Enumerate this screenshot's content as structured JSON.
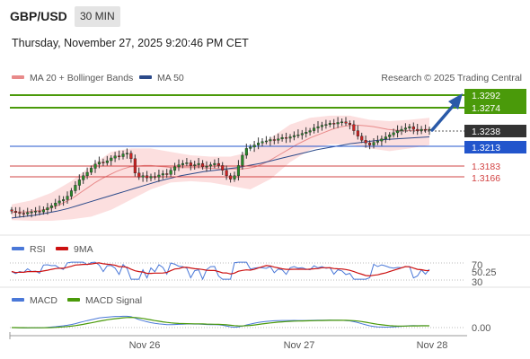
{
  "header": {
    "symbol": "GBP/USD",
    "timeframe": "30 MIN",
    "datetime": "Thursday, November 27, 2025 9:20:46 PM CET"
  },
  "colors": {
    "bull": "#2a8a2a",
    "bear": "#cc2222",
    "resistance": "#4a9a0a",
    "support_blue": "#2255cc",
    "support_red": "#d24444",
    "ma20": "#e88a8a",
    "ma50": "#2c4a8a",
    "band_fill": "#fbd9d9",
    "rsi": "#4a78d8",
    "rsi_ma": "#cc1111",
    "macd": "#4a78d8",
    "macd_signal": "#4a9a0a",
    "arrow": "#2a5aa8"
  },
  "chart_data": [
    {
      "type": "candlestick",
      "legend": [
        {
          "label": "MA 20 + Bollinger Bands",
          "color": "#e88a8a"
        },
        {
          "label": "MA 50",
          "color": "#2c4a8a"
        }
      ],
      "watermark": "Research © 2025 Trading Central",
      "x_ticks": [
        "Nov 26",
        "Nov 27",
        "Nov 28"
      ],
      "y_range": [
        1.31,
        1.33
      ],
      "last_price": "1.3238",
      "levels": [
        {
          "value": "1.3292",
          "kind": "resistance"
        },
        {
          "value": "1.3274",
          "kind": "resistance"
        },
        {
          "value": "1.3213",
          "kind": "pivot"
        },
        {
          "value": "1.3183",
          "kind": "support"
        },
        {
          "value": "1.3166",
          "kind": "support"
        }
      ],
      "close_series": [
        1.3118,
        1.3116,
        1.3115,
        1.3114,
        1.3116,
        1.3117,
        1.3118,
        1.3117,
        1.312,
        1.3123,
        1.3126,
        1.313,
        1.3133,
        1.3135,
        1.314,
        1.3148,
        1.3156,
        1.3164,
        1.317,
        1.3175,
        1.3181,
        1.3187,
        1.319,
        1.3189,
        1.3192,
        1.3196,
        1.3199,
        1.3198,
        1.3202,
        1.3203,
        1.3195,
        1.3174,
        1.3168,
        1.317,
        1.3167,
        1.3169,
        1.3168,
        1.3171,
        1.3173,
        1.3172,
        1.3178,
        1.3183,
        1.3186,
        1.3188,
        1.3189,
        1.3185,
        1.3186,
        1.3188,
        1.3183,
        1.3184,
        1.3186,
        1.3188,
        1.3185,
        1.3178,
        1.317,
        1.3165,
        1.317,
        1.3185,
        1.32,
        1.321,
        1.3212,
        1.3215,
        1.3218,
        1.322,
        1.3221,
        1.3223,
        1.3222,
        1.3224,
        1.3226,
        1.3225,
        1.3227,
        1.3229,
        1.323,
        1.3232,
        1.3234,
        1.3236,
        1.324,
        1.3242,
        1.3244,
        1.3245,
        1.3247,
        1.3246,
        1.3248,
        1.3249,
        1.3247,
        1.3245,
        1.3236,
        1.3228,
        1.3222,
        1.3218,
        1.3215,
        1.3219,
        1.3221,
        1.3224,
        1.3227,
        1.323,
        1.3233,
        1.3236,
        1.3238,
        1.324,
        1.3242,
        1.3238,
        1.3236,
        1.3238,
        1.3237,
        1.3238
      ],
      "ma20_series": [
        1.3116,
        1.3117,
        1.3117,
        1.3118,
        1.3119,
        1.3121,
        1.3124,
        1.3128,
        1.3133,
        1.3139,
        1.3146,
        1.3153,
        1.316,
        1.3166,
        1.3171,
        1.3176,
        1.318,
        1.3183,
        1.3184,
        1.3185,
        1.3185,
        1.3184,
        1.3183,
        1.3182,
        1.3182,
        1.3182,
        1.3182,
        1.3182,
        1.3181,
        1.3181,
        1.318,
        1.318,
        1.318,
        1.318,
        1.3181,
        1.3183,
        1.3187,
        1.3192,
        1.3198,
        1.3204,
        1.321,
        1.3216,
        1.3221,
        1.3226,
        1.323,
        1.3234,
        1.3238,
        1.3241,
        1.3243,
        1.3244,
        1.3244,
        1.3243,
        1.3242,
        1.324,
        1.3238,
        1.3237,
        1.3236,
        1.3236,
        1.3236,
        1.3237,
        1.3238
      ],
      "ma50_series": [
        1.3108,
        1.311,
        1.3112,
        1.3115,
        1.3118,
        1.3122,
        1.3127,
        1.3132,
        1.3137,
        1.3142,
        1.3147,
        1.3152,
        1.3157,
        1.3162,
        1.3166,
        1.317,
        1.3173,
        1.3176,
        1.3178,
        1.318,
        1.3182,
        1.3185,
        1.3188,
        1.3192,
        1.3196,
        1.32,
        1.3204,
        1.3208,
        1.3211,
        1.3214,
        1.3217,
        1.3219,
        1.3221,
        1.3223,
        1.3224,
        1.3225,
        1.3226,
        1.3227
      ],
      "band_upper": [
        1.3128,
        1.3134,
        1.3145,
        1.3162,
        1.3185,
        1.3205,
        1.321,
        1.321,
        1.3205,
        1.32,
        1.3198,
        1.3198,
        1.3205,
        1.3225,
        1.3245,
        1.3255,
        1.3258,
        1.3258,
        1.3252,
        1.325,
        1.3252,
        1.3255
      ],
      "band_lower": [
        1.3105,
        1.3104,
        1.3104,
        1.3106,
        1.311,
        1.312,
        1.3135,
        1.315,
        1.316,
        1.3162,
        1.316,
        1.3155,
        1.315,
        1.3165,
        1.319,
        1.3208,
        1.3216,
        1.3216,
        1.321,
        1.3206,
        1.321,
        1.3215
      ]
    },
    {
      "type": "line",
      "legend": [
        {
          "label": "RSI",
          "color": "#4a78d8"
        },
        {
          "label": "9MA",
          "color": "#cc1111"
        }
      ],
      "y_ticks": [
        "70",
        "50.25",
        "30"
      ],
      "current_value": "50.25"
    },
    {
      "type": "line",
      "legend": [
        {
          "label": "MACD",
          "color": "#4a78d8"
        },
        {
          "label": "MACD Signal",
          "color": "#4a9a0a"
        }
      ],
      "y_ticks": [
        "0.00"
      ],
      "current_value": "0.00"
    }
  ]
}
